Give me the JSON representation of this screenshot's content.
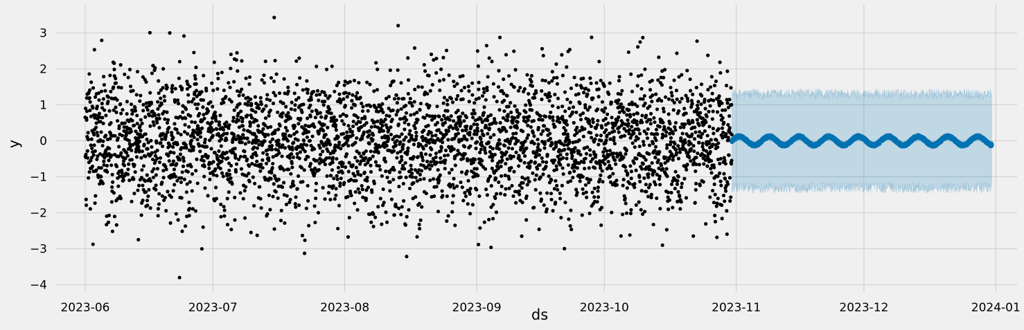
{
  "chart_data": {
    "type": "scatter",
    "xlabel": "ds",
    "ylabel": "y",
    "xlim": [
      "2023-05-25",
      "2024-01-06"
    ],
    "ylim": [
      -4.2,
      3.8
    ],
    "x_ticks": [
      "2023-06",
      "2023-07",
      "2023-08",
      "2023-09",
      "2023-10",
      "2023-11",
      "2023-12",
      "2024-01"
    ],
    "y_ticks": [
      "3",
      "2",
      "1",
      "0",
      "−1",
      "−2",
      "−3",
      "−4"
    ],
    "y_tick_values": [
      3,
      2,
      1,
      0,
      -1,
      -2,
      -3,
      -4
    ],
    "grid": true,
    "series": [
      {
        "kind": "observed",
        "marker": "dot",
        "x_range": [
          "2023-06-01",
          "2023-10-31"
        ],
        "samples_per_day": 24,
        "mean": 0,
        "std_approx": 1.0,
        "min": -3.8,
        "max": 3.6,
        "color": "#000000"
      },
      {
        "kind": "forecast",
        "x_range": [
          "2023-10-31",
          "2023-12-31"
        ],
        "mean": 0.0,
        "amplitude": 0.12,
        "period_days": 7,
        "color": "#0072B2"
      },
      {
        "kind": "uncertainty_interval",
        "x_range": [
          "2023-10-31",
          "2023-12-31"
        ],
        "lower": -1.3,
        "upper": 1.3,
        "jitter": 0.15,
        "color": "#0072B2"
      }
    ]
  },
  "colors": {
    "background": "#f0f0f0",
    "grid": "#cbcbcb",
    "observed": "#000000",
    "forecast": "#0072B2",
    "interval_fill": "#0072B2"
  }
}
